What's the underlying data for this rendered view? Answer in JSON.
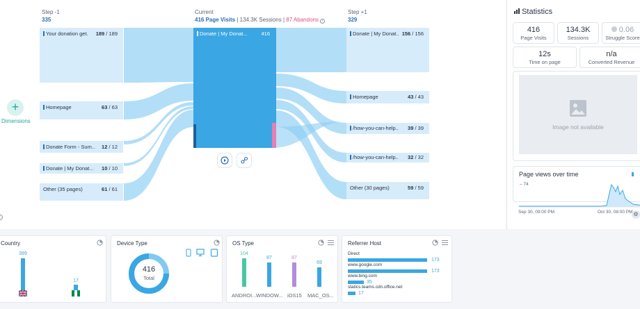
{
  "flow": {
    "step_prev": {
      "title": "Step -1",
      "count": "335"
    },
    "current": {
      "title": "Current",
      "page_visits": "416 Page Visits",
      "sessions": "134.3K Sessions",
      "abandons": "87 Abandons"
    },
    "step_next": {
      "title": "Step +1",
      "count": "329"
    },
    "prev_nodes": [
      {
        "label": "Your donation get...",
        "a": "189",
        "b": "189"
      },
      {
        "label": "Homepage",
        "a": "63",
        "b": "63"
      },
      {
        "label": "Donate Form - Sum...",
        "a": "12",
        "b": "12"
      },
      {
        "label": "Donate | My Donat...",
        "a": "10",
        "b": "10"
      },
      {
        "label": "Other (35 pages)",
        "a": "61",
        "b": "61"
      }
    ],
    "center_node": {
      "label": "Donate | My Donat...",
      "count": "416"
    },
    "next_nodes": [
      {
        "label": "Donate | My Donat...",
        "a": "156",
        "b": "156"
      },
      {
        "label": "Homepage",
        "a": "43",
        "b": "43"
      },
      {
        "label": "/how-you-can-help...",
        "a": "39",
        "b": "39"
      },
      {
        "label": "/how-you-can-help...",
        "a": "32",
        "b": "32"
      },
      {
        "label": "Other (30 pages)",
        "a": "59",
        "b": "59"
      }
    ],
    "separator": "/",
    "dimensions_label": "Dimensions"
  },
  "statistics": {
    "title": "Statistics",
    "page_visits": {
      "value": "416",
      "label": "Page Visits"
    },
    "sessions": {
      "value": "134.3K",
      "label": "Sessions"
    },
    "struggle": {
      "value": "0.06",
      "label": "Struggle Score"
    },
    "time_on_page": {
      "value": "12s",
      "label": "Time on page"
    },
    "revenue": {
      "value": "n/a",
      "label": "Converted Revenue"
    },
    "image_placeholder": "Image not available",
    "page_views": {
      "title": "Page views over time",
      "y_tick": "74",
      "x_start": "Sep 30, 09:00 PM",
      "x_end": "Oct 30, 08:00 PM"
    }
  },
  "panels": {
    "country": {
      "title": "Country",
      "values": [
        "399",
        "17"
      ]
    },
    "device": {
      "title": "Device Type",
      "total_value": "416",
      "total_label": "Total"
    },
    "os": {
      "title": "OS Type",
      "bars": [
        {
          "value": "104",
          "label": "ANDROI...",
          "color": "#48c7a4"
        },
        {
          "value": "87",
          "label": "WINDOW...",
          "color": "#3aa6e3"
        },
        {
          "value": "87",
          "label": "iOS15",
          "color": "#b38be0"
        },
        {
          "value": "69",
          "label": "MAC_OS...",
          "color": "#3aa6e3"
        }
      ]
    },
    "referrer": {
      "title": "Referrer Host",
      "rows": [
        {
          "label": "Direct",
          "value": "173"
        },
        {
          "label": "www.google.com",
          "value": "173"
        },
        {
          "label": "www.bing.com",
          "value": "35"
        },
        {
          "label": "statics.teams.cdn.office.net",
          "value": "17"
        }
      ]
    }
  }
}
